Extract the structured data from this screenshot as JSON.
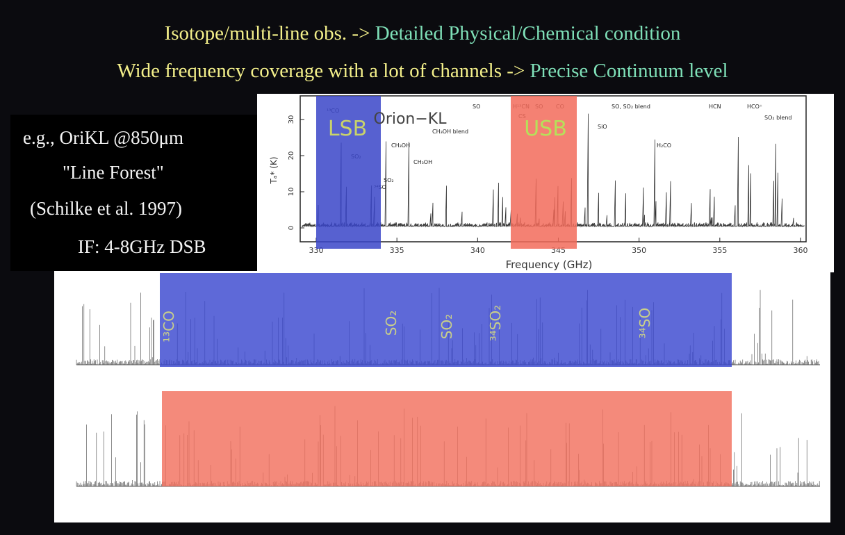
{
  "header": {
    "line1": {
      "left": "Isotope/multi-line obs. ->",
      "right": "Detailed Physical/Chemical condition"
    },
    "line2": {
      "left": "Wide frequency coverage with a lot of channels ->",
      "right": "Precise Continuum level"
    }
  },
  "note": {
    "lines": [
      "e.g., OriKL @850μm",
      "\"Line Forest\"",
      "(Schilke et al. 1997)",
      "IF: 4-8GHz DSB"
    ]
  },
  "spectrum": {
    "source": "Orion−KL",
    "x_label": "Frequency  (GHz)",
    "y_label": "Tₐ* (K)",
    "xticks": [
      330,
      335,
      340,
      345,
      350,
      355,
      360
    ],
    "yticks": [
      0,
      10,
      20,
      30
    ],
    "bands": [
      "LSB",
      "USB"
    ],
    "line_labels": [
      "¹³CO",
      "SO₂",
      "³⁴SO",
      "CH₃OH",
      "CH₃OH blend",
      "CH₃OH",
      "SO₂",
      "SO",
      "H¹³CN",
      "SO",
      "CO",
      "CS",
      "SO, SO₂ blend",
      "SiO",
      "H₂CO",
      "HCN",
      "HCO⁺",
      "SO₂ blend"
    ]
  },
  "strips": {
    "lsb_labels": [
      "¹³CO",
      "SO₂",
      "SO₂",
      "³⁴SO₂",
      "³⁴SO"
    ]
  }
}
